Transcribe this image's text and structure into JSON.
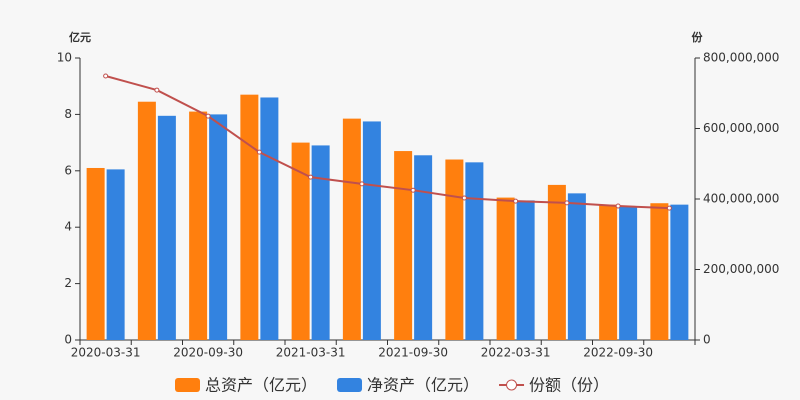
{
  "chart_data": {
    "type": "bar",
    "y_unit_label": "亿元",
    "y2_unit_label": "份",
    "categories": [
      "2020-03-31",
      null,
      "2020-09-30",
      null,
      "2021-03-31",
      null,
      "2021-09-30",
      null,
      "2022-03-31",
      null,
      "2022-09-30",
      null
    ],
    "series": [
      {
        "name": "总资产（亿元）",
        "type": "bar",
        "color": "#ff7f0e",
        "values": [
          6.1,
          8.45,
          8.1,
          8.7,
          7.0,
          7.85,
          6.7,
          6.4,
          5.05,
          5.5,
          4.8,
          4.85
        ]
      },
      {
        "name": "净资产（亿元）",
        "type": "bar",
        "color": "#3383e0",
        "values": [
          6.05,
          7.95,
          8.0,
          8.6,
          6.9,
          7.75,
          6.55,
          6.3,
          4.95,
          5.2,
          4.75,
          4.8
        ]
      },
      {
        "name": "份额（份）",
        "type": "line",
        "axis": "y2",
        "color": "#c0504d",
        "values": [
          749000000,
          709000000,
          635000000,
          533000000,
          462000000,
          443000000,
          425000000,
          403000000,
          394000000,
          389000000,
          380000000,
          374000000
        ]
      }
    ],
    "ylim": [
      0,
      10
    ],
    "yticks": [
      0,
      2,
      4,
      6,
      8,
      10
    ],
    "y2lim": [
      0,
      800000000
    ],
    "y2ticks": [
      0,
      {
        "value": 200000000,
        "label": "200,000,000"
      },
      {
        "value": 400000000,
        "label": "400,000,000"
      },
      {
        "value": 600000000,
        "label": "600,000,000"
      },
      {
        "value": 800000000,
        "label": "800,000,000"
      }
    ],
    "grid": false
  }
}
